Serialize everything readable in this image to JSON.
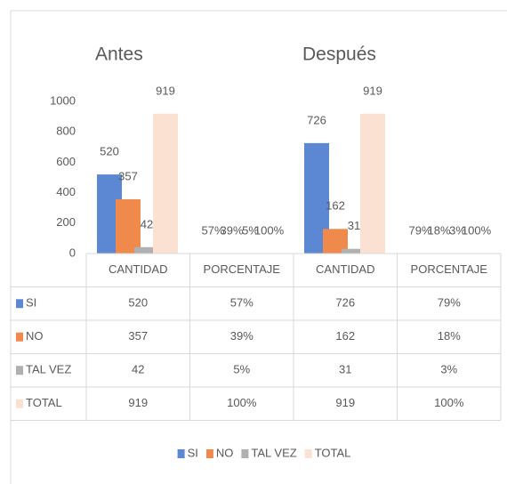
{
  "chart_data": {
    "type": "bar",
    "group_labels": [
      "Antes",
      "Después"
    ],
    "categories": [
      "CANTIDAD",
      "PORCENTAJE",
      "CANTIDAD",
      "PORCENTAJE"
    ],
    "series": [
      {
        "name": "SI",
        "color": "#5b87d3",
        "values": [
          520,
          0.57,
          726,
          0.79
        ],
        "value_labels": [
          null,
          "57%",
          null,
          "79%"
        ]
      },
      {
        "name": "NO",
        "color": "#ef8a4c",
        "values": [
          357,
          0.39,
          162,
          0.18
        ],
        "value_labels": [
          null,
          "39%",
          null,
          "18%"
        ]
      },
      {
        "name": "TAL VEZ",
        "color": "#b0b0b0",
        "values": [
          42,
          0.05,
          31,
          0.03
        ],
        "value_labels": [
          null,
          "5%",
          null,
          "3%"
        ]
      },
      {
        "name": "TOTAL",
        "color": "#fbe1d1",
        "values": [
          919,
          1,
          919,
          1
        ],
        "value_labels": [
          null,
          "100%",
          null,
          "100%"
        ]
      }
    ],
    "ylim": [
      0,
      1000
    ],
    "yticks": [
      0,
      200,
      400,
      600,
      800,
      1000
    ],
    "grid": false,
    "data_table": true,
    "legend": "bottom"
  }
}
